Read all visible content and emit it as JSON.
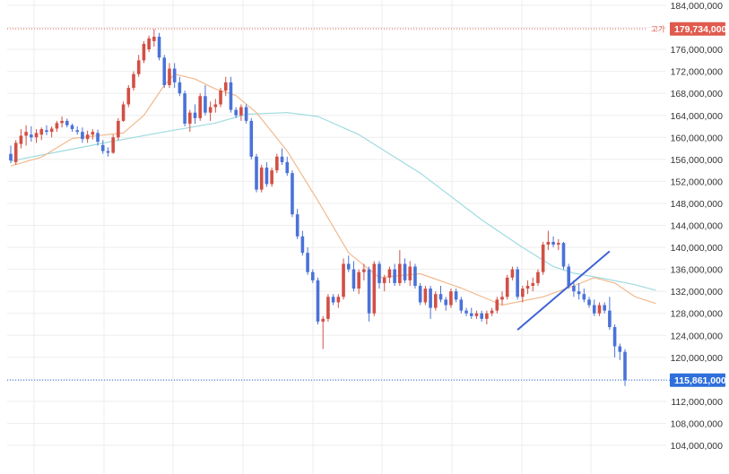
{
  "chart_data": {
    "type": "candlestick",
    "y_ticks": [
      "184,000,000",
      "180,000,000",
      "176,000,000",
      "172,000,000",
      "168,000,000",
      "164,000,000",
      "160,000,000",
      "156,000,000",
      "152,000,000",
      "148,000,000",
      "144,000,000",
      "140,000,000",
      "136,000,000",
      "132,000,000",
      "128,000,000",
      "124,000,000",
      "120,000,000",
      "116,000,000",
      "112,000,000",
      "108,000,000",
      "104,000,000"
    ],
    "y_tick_values": [
      184000000,
      180000000,
      176000000,
      172000000,
      168000000,
      164000000,
      160000000,
      156000000,
      152000000,
      148000000,
      144000000,
      140000000,
      136000000,
      132000000,
      128000000,
      124000000,
      120000000,
      116000000,
      112000000,
      108000000,
      104000000
    ],
    "ylim": [
      102000000,
      186000000
    ],
    "grid": true,
    "high_marker": {
      "label": "고가",
      "value": 179734000,
      "value_text": "179,734,000"
    },
    "current_price": {
      "value": 115861000,
      "value_text": "115,861,000"
    },
    "colors": {
      "up": "#d24f45",
      "down": "#4a72d8",
      "ma_short": "#f2b98c",
      "ma_long": "#9fdbe0",
      "trendline": "#3f63d6",
      "badge_high": "#e05a4e",
      "badge_current": "#2f6fdb",
      "grid": "#eeeeee"
    },
    "candles": [
      [
        157.0,
        158.5,
        155.3,
        155.8
      ],
      [
        155.5,
        159.5,
        155.0,
        159.0
      ],
      [
        158.8,
        161.5,
        158.0,
        160.3
      ],
      [
        160.3,
        162.2,
        158.5,
        161.0
      ],
      [
        160.5,
        162.0,
        159.2,
        160.0
      ],
      [
        160.0,
        161.5,
        159.0,
        160.8
      ],
      [
        160.5,
        161.8,
        159.5,
        161.5
      ],
      [
        161.3,
        162.2,
        160.4,
        161.0
      ],
      [
        161.0,
        162.0,
        160.0,
        161.6
      ],
      [
        161.6,
        163.0,
        161.0,
        162.6
      ],
      [
        162.6,
        163.8,
        161.8,
        163.0
      ],
      [
        163.0,
        163.4,
        161.8,
        162.2
      ],
      [
        162.2,
        162.5,
        161.0,
        161.5
      ],
      [
        161.3,
        162.0,
        160.5,
        161.0
      ],
      [
        161.0,
        161.8,
        159.0,
        159.7
      ],
      [
        159.7,
        161.2,
        159.0,
        160.5
      ],
      [
        160.5,
        161.5,
        159.6,
        161.0
      ],
      [
        160.8,
        161.4,
        158.5,
        159.2
      ],
      [
        158.6,
        159.5,
        157.0,
        157.5
      ],
      [
        157.5,
        158.2,
        156.5,
        157.2
      ],
      [
        157.2,
        160.5,
        157.0,
        160.0
      ],
      [
        160.0,
        163.5,
        159.5,
        163.0
      ],
      [
        163.0,
        166.5,
        162.8,
        166.0
      ],
      [
        166.0,
        169.5,
        165.5,
        169.0
      ],
      [
        169.0,
        172.0,
        168.5,
        171.5
      ],
      [
        171.5,
        175.0,
        171.0,
        174.0
      ],
      [
        174.0,
        177.5,
        173.5,
        177.0
      ],
      [
        176.0,
        178.5,
        175.5,
        178.0
      ],
      [
        177.5,
        179.7,
        176.5,
        178.3
      ],
      [
        178.3,
        179.0,
        174.0,
        174.5
      ],
      [
        174.5,
        175.0,
        169.0,
        169.5
      ],
      [
        169.5,
        173.5,
        169.0,
        172.5
      ],
      [
        172.5,
        173.5,
        169.0,
        170.0
      ],
      [
        170.0,
        171.0,
        167.5,
        168.0
      ],
      [
        168.0,
        168.5,
        162.0,
        162.5
      ],
      [
        162.5,
        165.0,
        161.0,
        164.5
      ],
      [
        164.5,
        166.0,
        162.5,
        163.5
      ],
      [
        163.5,
        168.0,
        163.0,
        167.5
      ],
      [
        167.5,
        169.5,
        164.0,
        164.5
      ],
      [
        164.5,
        166.5,
        163.0,
        165.5
      ],
      [
        165.5,
        167.0,
        164.5,
        166.0
      ],
      [
        166.0,
        169.0,
        165.5,
        168.5
      ],
      [
        168.5,
        171.0,
        167.5,
        170.0
      ],
      [
        170.0,
        171.0,
        164.5,
        165.0
      ],
      [
        165.0,
        165.5,
        163.5,
        164.0
      ],
      [
        164.0,
        166.0,
        163.0,
        165.5
      ],
      [
        165.5,
        166.0,
        162.5,
        163.0
      ],
      [
        163.0,
        163.5,
        156.0,
        156.5
      ],
      [
        156.5,
        157.0,
        150.0,
        150.5
      ],
      [
        150.5,
        155.0,
        150.0,
        154.5
      ],
      [
        154.5,
        155.5,
        151.0,
        151.5
      ],
      [
        151.5,
        154.5,
        151.0,
        154.0
      ],
      [
        154.0,
        157.0,
        153.5,
        156.5
      ],
      [
        156.5,
        158.0,
        155.0,
        155.5
      ],
      [
        155.5,
        156.5,
        153.0,
        153.5
      ],
      [
        153.5,
        154.0,
        145.5,
        146.0
      ],
      [
        146.0,
        147.0,
        141.5,
        142.0
      ],
      [
        142.0,
        143.0,
        138.5,
        139.0
      ],
      [
        139.0,
        140.0,
        135.0,
        135.5
      ],
      [
        135.5,
        136.0,
        133.5,
        134.0
      ],
      [
        134.0,
        134.5,
        126.0,
        126.5
      ],
      [
        126.5,
        127.5,
        121.5,
        127.0
      ],
      [
        127.0,
        131.5,
        126.5,
        131.0
      ],
      [
        131.0,
        131.5,
        129.5,
        130.0
      ],
      [
        130.0,
        131.5,
        129.0,
        131.0
      ],
      [
        131.0,
        138.0,
        130.5,
        137.0
      ],
      [
        137.0,
        138.5,
        135.5,
        136.0
      ],
      [
        136.0,
        137.5,
        132.0,
        132.5
      ],
      [
        132.5,
        136.0,
        131.5,
        135.5
      ],
      [
        135.5,
        137.0,
        134.0,
        136.0
      ],
      [
        136.0,
        136.5,
        126.5,
        128.0
      ],
      [
        128.0,
        137.5,
        127.5,
        137.0
      ],
      [
        137.0,
        137.5,
        132.5,
        133.5
      ],
      [
        133.5,
        135.0,
        132.0,
        134.5
      ],
      [
        134.5,
        136.5,
        133.5,
        136.0
      ],
      [
        136.0,
        137.0,
        133.0,
        133.5
      ],
      [
        133.5,
        139.5,
        133.0,
        137.0
      ],
      [
        137.0,
        138.0,
        133.5,
        134.0
      ],
      [
        134.0,
        137.5,
        133.0,
        136.5
      ],
      [
        136.5,
        137.0,
        132.5,
        133.0
      ],
      [
        133.0,
        133.5,
        129.5,
        130.0
      ],
      [
        130.0,
        133.0,
        129.5,
        132.5
      ],
      [
        132.5,
        133.0,
        127.0,
        129.0
      ],
      [
        129.0,
        132.0,
        128.5,
        131.5
      ],
      [
        131.5,
        133.0,
        130.0,
        130.5
      ],
      [
        130.5,
        131.0,
        128.5,
        129.5
      ],
      [
        129.5,
        132.5,
        129.0,
        132.0
      ],
      [
        132.0,
        132.5,
        130.0,
        130.5
      ],
      [
        130.5,
        131.0,
        128.0,
        128.5
      ],
      [
        128.5,
        129.0,
        127.5,
        128.0
      ],
      [
        128.0,
        129.0,
        127.0,
        127.5
      ],
      [
        127.5,
        128.5,
        127.0,
        128.0
      ],
      [
        128.0,
        128.5,
        126.5,
        127.0
      ],
      [
        127.0,
        128.5,
        126.0,
        128.0
      ],
      [
        128.0,
        129.0,
        127.5,
        128.5
      ],
      [
        128.5,
        131.0,
        128.0,
        130.5
      ],
      [
        130.5,
        132.0,
        129.5,
        131.0
      ],
      [
        131.0,
        135.0,
        130.5,
        134.5
      ],
      [
        134.5,
        136.5,
        134.0,
        136.0
      ],
      [
        136.0,
        136.5,
        130.5,
        131.0
      ],
      [
        131.0,
        133.0,
        130.0,
        132.5
      ],
      [
        132.5,
        134.0,
        131.5,
        133.0
      ],
      [
        133.0,
        134.5,
        132.0,
        133.5
      ],
      [
        133.5,
        136.0,
        133.0,
        135.5
      ],
      [
        135.5,
        141.0,
        135.0,
        140.5
      ],
      [
        140.5,
        143.0,
        139.5,
        141.0
      ],
      [
        141.0,
        142.0,
        140.0,
        140.5
      ],
      [
        140.5,
        141.5,
        139.5,
        140.8
      ],
      [
        140.8,
        141.0,
        136.0,
        136.5
      ],
      [
        136.5,
        137.0,
        132.5,
        133.0
      ],
      [
        133.0,
        134.0,
        131.0,
        132.0
      ],
      [
        132.0,
        133.5,
        130.5,
        131.5
      ],
      [
        131.5,
        132.5,
        130.0,
        130.5
      ],
      [
        130.5,
        131.0,
        129.0,
        129.5
      ],
      [
        129.5,
        130.5,
        127.5,
        128.0
      ],
      [
        128.0,
        130.0,
        127.5,
        129.5
      ],
      [
        129.5,
        130.0,
        128.0,
        128.5
      ],
      [
        128.5,
        131.0,
        125.0,
        125.5
      ],
      [
        125.5,
        126.0,
        120.0,
        122.0
      ],
      [
        122.0,
        122.5,
        119.5,
        121.0
      ],
      [
        121.0,
        121.5,
        114.8,
        115.86
      ]
    ],
    "ma_short": [
      {
        "i": 0,
        "v": 154.8
      },
      {
        "i": 6,
        "v": 156.4
      },
      {
        "i": 12,
        "v": 159.8
      },
      {
        "i": 18,
        "v": 160.4
      },
      {
        "i": 22,
        "v": 160.8
      },
      {
        "i": 26,
        "v": 164.0
      },
      {
        "i": 30,
        "v": 169.5
      },
      {
        "i": 32,
        "v": 171.5
      },
      {
        "i": 36,
        "v": 170.6
      },
      {
        "i": 40,
        "v": 168.8
      },
      {
        "i": 44,
        "v": 167.6
      },
      {
        "i": 48,
        "v": 164.5
      },
      {
        "i": 54,
        "v": 157.5
      },
      {
        "i": 60,
        "v": 148.5
      },
      {
        "i": 66,
        "v": 139.0
      },
      {
        "i": 72,
        "v": 134.5
      },
      {
        "i": 80,
        "v": 135.2
      },
      {
        "i": 88,
        "v": 132.6
      },
      {
        "i": 96,
        "v": 129.5
      },
      {
        "i": 104,
        "v": 131.0
      },
      {
        "i": 110,
        "v": 133.0
      },
      {
        "i": 114,
        "v": 134.5
      },
      {
        "i": 118,
        "v": 133.5
      },
      {
        "i": 122,
        "v": 131.0
      },
      {
        "i": 126,
        "v": 129.8
      }
    ],
    "ma_long": [
      {
        "i": 0,
        "v": 155.7
      },
      {
        "i": 10,
        "v": 157.5
      },
      {
        "i": 20,
        "v": 159.3
      },
      {
        "i": 30,
        "v": 161.0
      },
      {
        "i": 40,
        "v": 162.6
      },
      {
        "i": 46,
        "v": 164.2
      },
      {
        "i": 54,
        "v": 164.5
      },
      {
        "i": 60,
        "v": 163.8
      },
      {
        "i": 68,
        "v": 160.5
      },
      {
        "i": 80,
        "v": 153.5
      },
      {
        "i": 92,
        "v": 145.0
      },
      {
        "i": 100,
        "v": 140.0
      },
      {
        "i": 106,
        "v": 136.5
      },
      {
        "i": 110,
        "v": 135.3
      },
      {
        "i": 116,
        "v": 134.3
      },
      {
        "i": 122,
        "v": 133.2
      },
      {
        "i": 126,
        "v": 132.2
      }
    ],
    "trendline": {
      "from": {
        "i": 99,
        "v": 125.0
      },
      "to": {
        "i": 117,
        "v": 139.3
      }
    }
  }
}
